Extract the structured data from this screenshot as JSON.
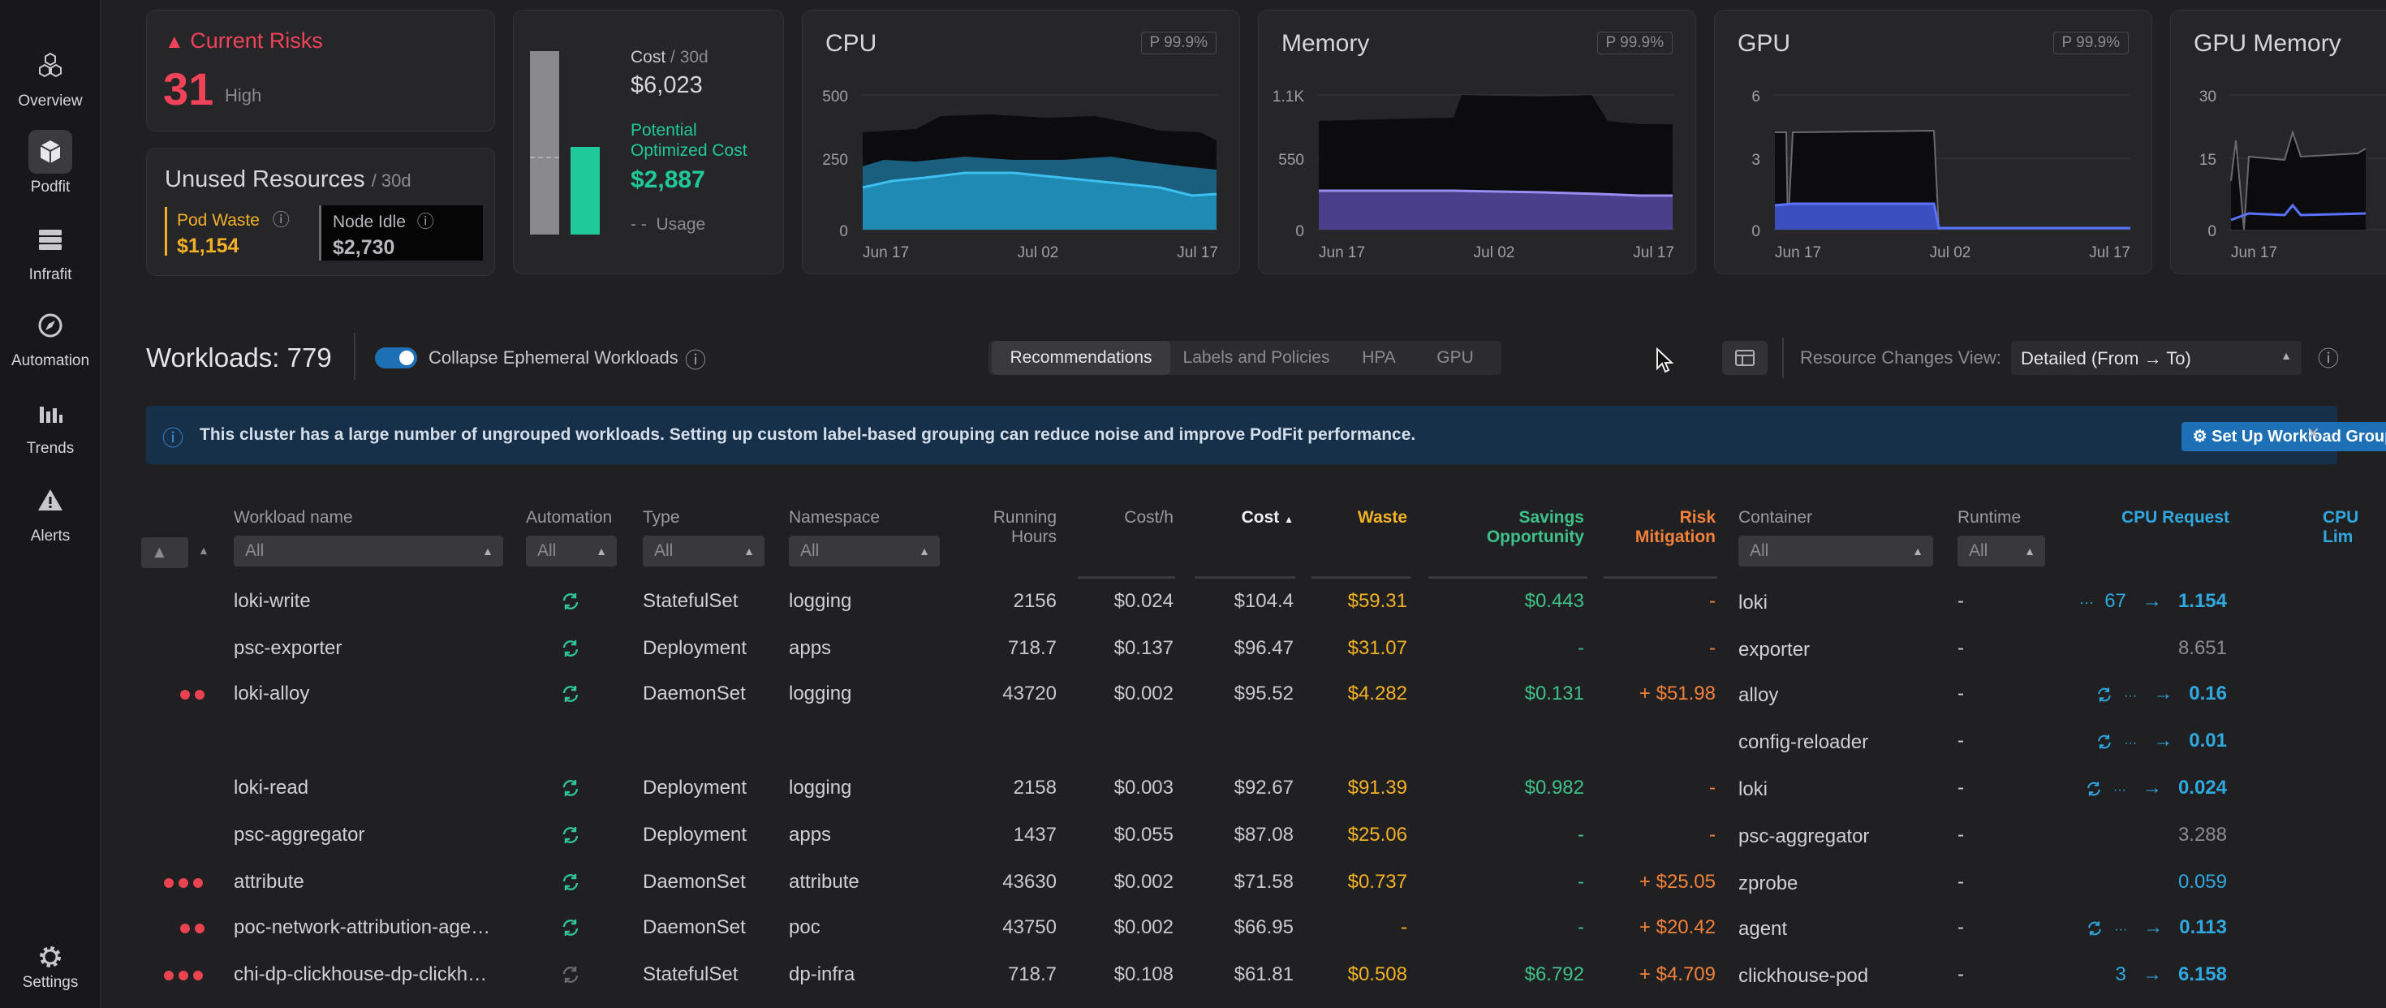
{
  "sidebar": {
    "items": [
      {
        "label": "Overview",
        "icon": "cubes-icon"
      },
      {
        "label": "Podfit",
        "icon": "cube-icon",
        "active": true
      },
      {
        "label": "Infrafit",
        "icon": "server-icon"
      },
      {
        "label": "Automation",
        "icon": "compass-icon"
      },
      {
        "label": "Trends",
        "icon": "bar-chart-icon"
      },
      {
        "label": "Alerts",
        "icon": "warning-icon"
      }
    ],
    "settings_label": "Settings"
  },
  "risks": {
    "title": "Current Risks",
    "count": "31",
    "level": "High"
  },
  "unused": {
    "title": "Unused Resources",
    "period": "/ 30d",
    "pod_waste_label": "Pod Waste",
    "pod_waste_value": "$1,154",
    "node_idle_label": "Node Idle",
    "node_idle_value": "$2,730"
  },
  "cost": {
    "label": "Cost",
    "period": "/ 30d",
    "value": "$6,023",
    "optimized_label_1": "Potential",
    "optimized_label_2": "Optimized Cost",
    "optimized_value": "$2,887",
    "usage_label": "Usage",
    "bar_fill_current": 1.0,
    "bar_fill_optimized": 0.48
  },
  "charts": [
    {
      "title": "CPU",
      "badge": "P 99.9%",
      "yticks": [
        "500",
        "250",
        "0"
      ],
      "xticks": [
        "Jun 17",
        "Jul 02",
        "Jul 17"
      ]
    },
    {
      "title": "Memory",
      "badge": "P 99.9%",
      "yticks": [
        "1.1K",
        "550",
        "0"
      ],
      "xticks": [
        "Jun 17",
        "Jul 02",
        "Jul 17"
      ]
    },
    {
      "title": "GPU",
      "badge": "P 99.9%",
      "yticks": [
        "6",
        "3",
        "0"
      ],
      "xticks": [
        "Jun 17",
        "Jul 02",
        "Jul 17"
      ]
    },
    {
      "title": "GPU Memory",
      "yticks": [
        "30",
        "15",
        "0"
      ],
      "xticks": [
        "Jun 17"
      ]
    }
  ],
  "workloads": {
    "title": "Workloads: 779",
    "collapse_label": "Collapse Ephemeral Workloads"
  },
  "tabs": [
    "Recommendations",
    "Labels and Policies",
    "HPA",
    "GPU"
  ],
  "view": {
    "label": "Resource Changes View:",
    "value": "Detailed (From → To)"
  },
  "banner": {
    "text": "This cluster has a large number of ungrouped workloads. Setting up custom label-based grouping can reduce noise and improve PodFit performance.",
    "button": "Set Up Workload Grouping"
  },
  "table": {
    "headers": {
      "name": "Workload name",
      "automation": "Automation",
      "type": "Type",
      "namespace": "Namespace",
      "hours_1": "Running",
      "hours_2": "Hours",
      "costh": "Cost/h",
      "cost": "Cost",
      "waste": "Waste",
      "savings_1": "Savings",
      "savings_2": "Opportunity",
      "risk_1": "Risk",
      "risk_2": "Mitigation",
      "container": "Container",
      "runtime": "Runtime",
      "cpu_req": "CPU Request",
      "cpu_lim": "CPU Lim"
    },
    "filter_all": "All",
    "rows": [
      {
        "dots": 0,
        "name": "loki-write",
        "type": "StatefulSet",
        "ns": "logging",
        "hours": "2156",
        "costh": "$0.024",
        "cost": "$104.4",
        "waste": "$59.31",
        "sav": "$0.443",
        "risk": "-",
        "container": "loki",
        "runtime": "-",
        "cpu_from": "67",
        "cpu_to": "1.154"
      },
      {
        "dots": 0,
        "name": "psc-exporter",
        "type": "Deployment",
        "ns": "apps",
        "hours": "718.7",
        "costh": "$0.137",
        "cost": "$96.47",
        "waste": "$31.07",
        "sav": "-",
        "risk": "-",
        "container": "exporter",
        "runtime": "-",
        "cpu_plain": "8.651"
      },
      {
        "dots": 2,
        "name": "loki-alloy",
        "type": "DaemonSet",
        "ns": "logging",
        "hours": "43720",
        "costh": "$0.002",
        "cost": "$95.52",
        "waste": "$4.282",
        "sav": "$0.131",
        "risk": "+ $51.98",
        "container": "alloy",
        "runtime": "-",
        "cpu_to": "0.16"
      },
      {
        "dots": 0,
        "name": "",
        "type": "",
        "ns": "",
        "hours": "",
        "costh": "",
        "cost": "",
        "waste": "",
        "sav": "",
        "risk": "",
        "container": "config-reloader",
        "runtime": "-",
        "cpu_to": "0.01"
      },
      {
        "dots": 0,
        "name": "loki-read",
        "type": "Deployment",
        "ns": "logging",
        "hours": "2158",
        "costh": "$0.003",
        "cost": "$92.67",
        "waste": "$91.39",
        "sav": "$0.982",
        "risk": "-",
        "container": "loki",
        "runtime": "-",
        "cpu_to": "0.024"
      },
      {
        "dots": 0,
        "name": "psc-aggregator",
        "type": "Deployment",
        "ns": "apps",
        "hours": "1437",
        "costh": "$0.055",
        "cost": "$87.08",
        "waste": "$25.06",
        "sav": "-",
        "risk": "-",
        "container": "psc-aggregator",
        "runtime": "-",
        "cpu_plain": "3.288"
      },
      {
        "dots": 3,
        "name": "attribute",
        "type": "DaemonSet",
        "ns": "attribute",
        "hours": "43630",
        "costh": "$0.002",
        "cost": "$71.58",
        "waste": "$0.737",
        "sav": "-",
        "risk": "+ $25.05",
        "container": "zprobe",
        "runtime": "-",
        "cpu_plain_blue": "0.059"
      },
      {
        "dots": 2,
        "name": "poc-network-attribution-age…",
        "type": "DaemonSet",
        "ns": "poc",
        "hours": "43750",
        "costh": "$0.002",
        "cost": "$66.95",
        "waste": "-",
        "sav": "-",
        "risk": "+ $20.42",
        "container": "agent",
        "runtime": "-",
        "cpu_to": "0.113"
      },
      {
        "dots": 3,
        "name": "chi-dp-clickhouse-dp-clickh…",
        "type": "StatefulSet",
        "ns": "dp-infra",
        "hours": "718.7",
        "costh": "$0.108",
        "cost": "$61.81",
        "waste": "$0.508",
        "sav": "$6.792",
        "risk": "+ $4.709",
        "container": "clickhouse-pod",
        "runtime": "-",
        "cpu_from": "3",
        "cpu_to": "6.158"
      }
    ]
  }
}
